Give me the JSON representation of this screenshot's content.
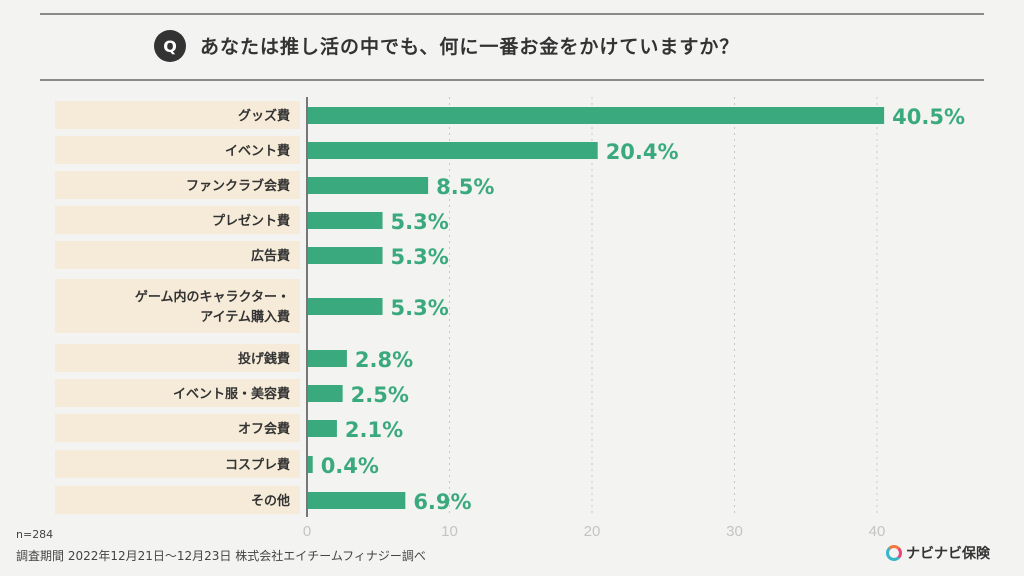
{
  "header": {
    "q_icon": "Q",
    "title": "あなたは推し活の中でも、何に一番お金をかけていますか？"
  },
  "footer": {
    "sample": "n=284",
    "note": "調査期間 2022年12月21日〜12月23日 株式会社エイチームフィナジー調べ"
  },
  "logo": {
    "text": "ナビナビ保険"
  },
  "colors": {
    "bar": "#3aaa7e",
    "label_bg": "#f5ebd8",
    "value_text": "#3aaa7e"
  },
  "chart_data": {
    "type": "bar",
    "orientation": "horizontal",
    "categories": [
      "グッズ費",
      "イベント費",
      "ファンクラブ会費",
      "プレゼント費",
      "広告費",
      "ゲーム内のキャラクター・\nアイテム購入費",
      "投げ銭費",
      "イベント服・美容費",
      "オフ会費",
      "コスプレ費",
      "その他"
    ],
    "values": [
      40.5,
      20.4,
      8.5,
      5.3,
      5.3,
      5.3,
      2.8,
      2.5,
      2.1,
      0.4,
      6.9
    ],
    "value_labels": [
      "40.5%",
      "20.4%",
      "8.5%",
      "5.3%",
      "5.3%",
      "5.3%",
      "2.8%",
      "2.5%",
      "2.1%",
      "0.4%",
      "6.9%"
    ],
    "xlim": [
      0,
      40
    ],
    "xticks": [
      "0",
      "10",
      "20",
      "30",
      "40"
    ],
    "grid": true,
    "unit": "%"
  }
}
